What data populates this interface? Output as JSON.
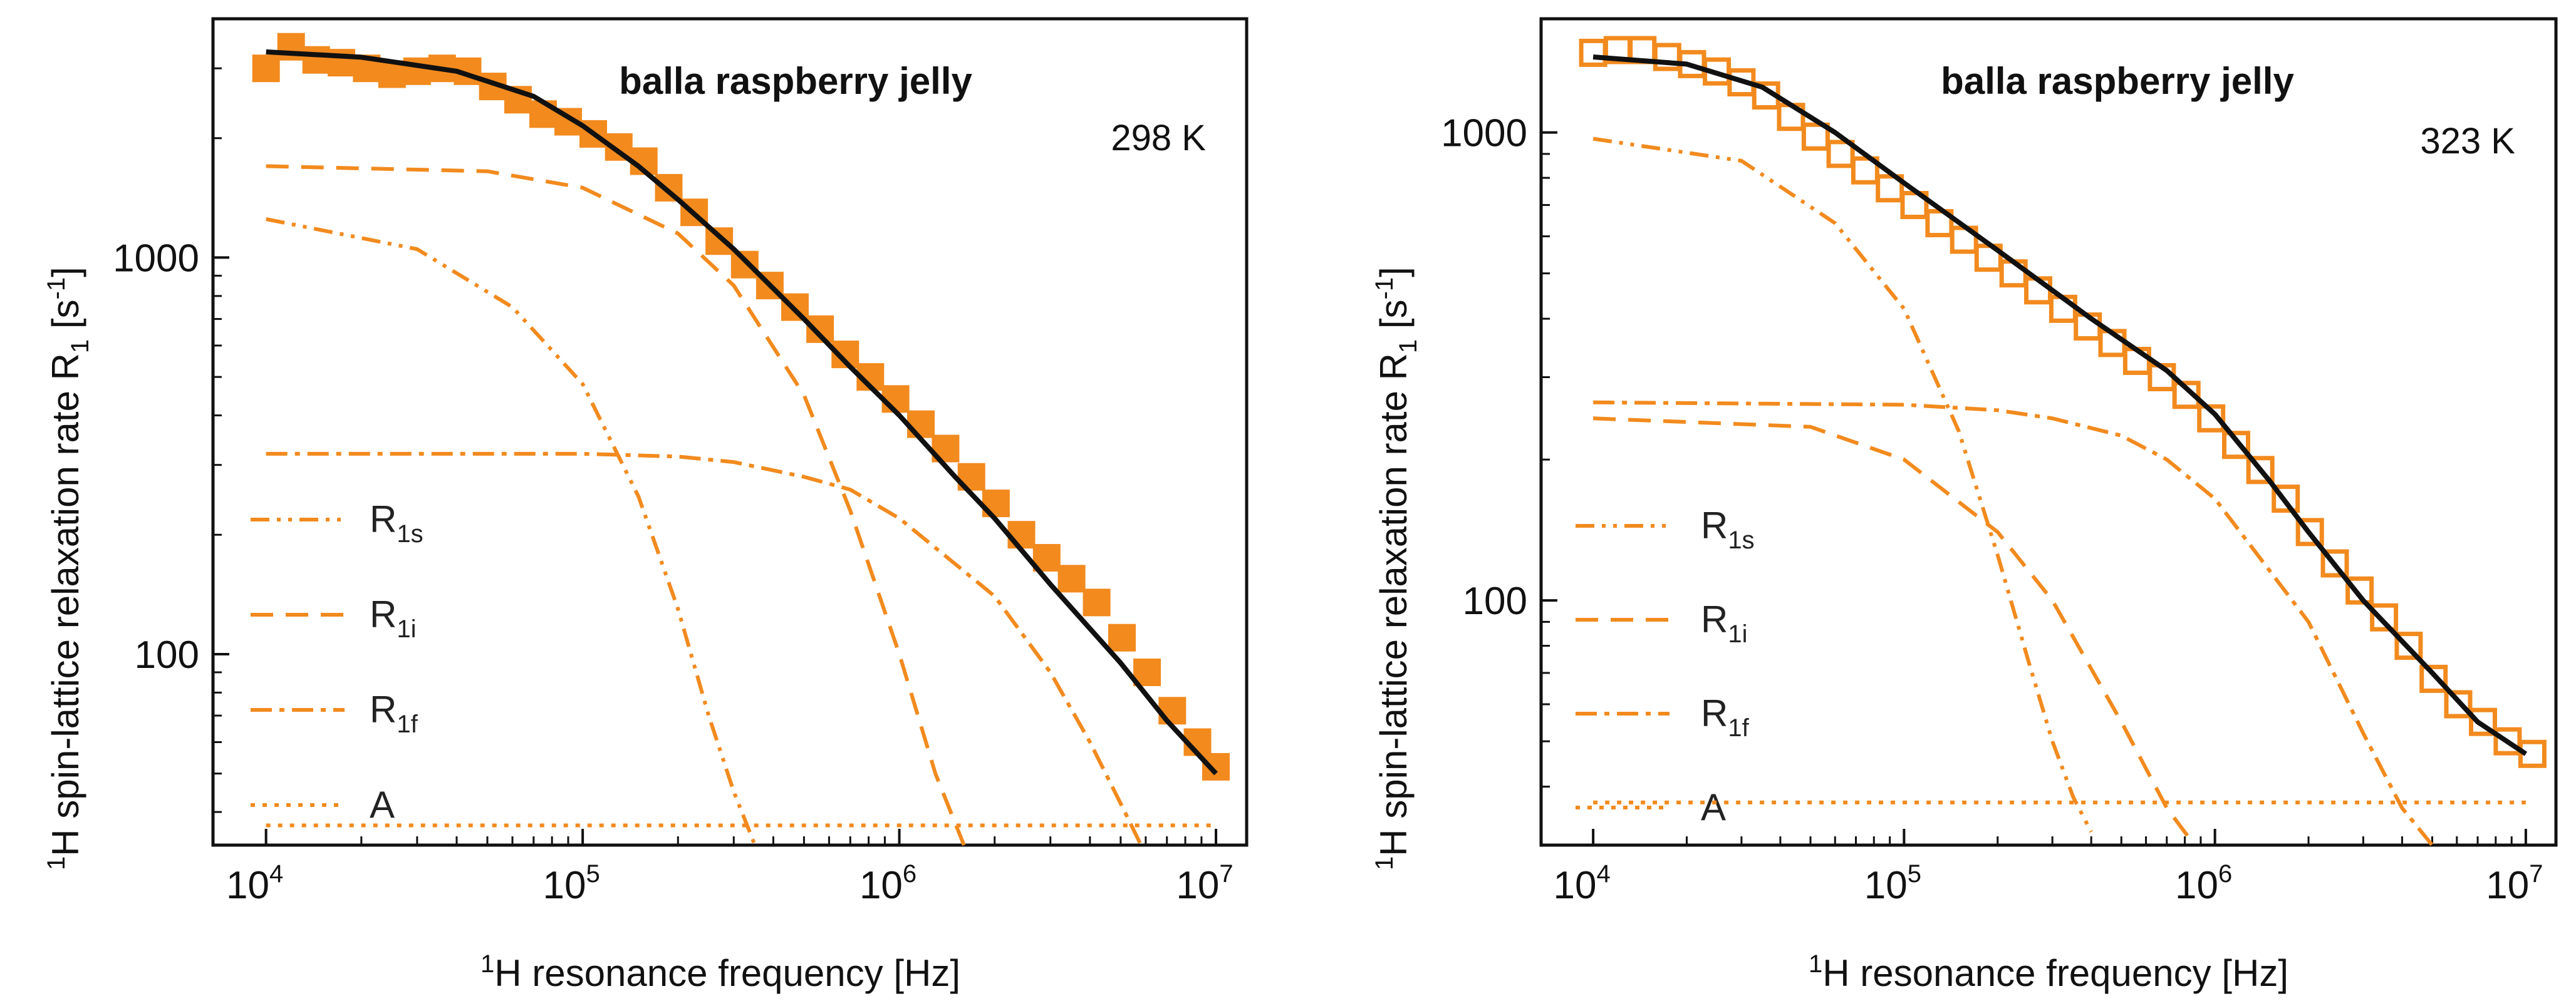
{
  "colors": {
    "orange": "#F28A1E",
    "black": "#111111",
    "frame": "#111111"
  },
  "common": {
    "xlabel": "resonance frequency [Hz]",
    "xlabel_prefix": "1",
    "xlabel_nucleus": "H",
    "ylabel": "spin-lattice relaxation rate R",
    "ylabel_prefix": "1",
    "ylabel_nucleus": "H",
    "ylabel_sub": "1",
    "ylabel_unit_open": "[s",
    "ylabel_unit_sup": "-1",
    "ylabel_unit_close": "]",
    "x_tick_base": "10",
    "x_tick_exps": [
      "4",
      "5",
      "6",
      "7"
    ]
  },
  "chart_data": [
    {
      "type": "scatter",
      "title": "balla raspberry jelly",
      "temperature": "298 K",
      "marker": "filled-square",
      "xscale": "log",
      "yscale": "log",
      "xlim": [
        6800,
        12500000
      ],
      "ylim": [
        33,
        4000
      ],
      "yticks": [
        100,
        1000
      ],
      "ytick_labels": [
        "100",
        "1000"
      ],
      "legend": [
        {
          "label": "R",
          "sub": "1s",
          "style": "dash-dot-dot"
        },
        {
          "label": "R",
          "sub": "1i",
          "style": "dash"
        },
        {
          "label": "R",
          "sub": "1f",
          "style": "dash-dot"
        },
        {
          "label": "A",
          "sub": "",
          "style": "dot"
        }
      ],
      "points": {
        "x": [
          10000,
          12000,
          14400,
          17300,
          20800,
          25000,
          30000,
          36000,
          43300,
          52000,
          62500,
          75000,
          90000,
          108000,
          130000,
          156000,
          187000,
          225000,
          270000,
          325000,
          390000,
          468000,
          562000,
          675000,
          810000,
          973000,
          1170000,
          1400000,
          1690000,
          2020000,
          2430000,
          2920000,
          3500000,
          4200000,
          5050000,
          6060000,
          7280000,
          8740000,
          10000000
        ],
        "y": [
          3000,
          3400,
          3150,
          3100,
          3000,
          2900,
          2950,
          3000,
          2950,
          2700,
          2500,
          2300,
          2200,
          2050,
          1900,
          1750,
          1500,
          1300,
          1100,
          960,
          850,
          750,
          660,
          570,
          500,
          440,
          380,
          330,
          280,
          240,
          200,
          175,
          155,
          135,
          110,
          90,
          72,
          60,
          52
        ]
      },
      "fit": {
        "x": [
          10000,
          20000,
          40000,
          70000,
          100000,
          150000,
          200000,
          300000,
          500000,
          700000,
          1000000,
          1500000,
          2000000,
          3000000,
          5000000,
          7000000,
          10000000
        ],
        "y": [
          3300,
          3200,
          2950,
          2550,
          2150,
          1700,
          1400,
          1050,
          700,
          530,
          400,
          280,
          220,
          150,
          95,
          68,
          50
        ]
      },
      "components": {
        "R1s": {
          "x": [
            10000,
            30000,
            60000,
            100000,
            150000,
            200000,
            250000,
            300000,
            350000
          ],
          "y": [
            1250,
            1050,
            750,
            480,
            250,
            130,
            70,
            45,
            33
          ]
        },
        "R1i": {
          "x": [
            10000,
            50000,
            100000,
            200000,
            300000,
            500000,
            700000,
            1000000,
            1300000,
            1600000
          ],
          "y": [
            1700,
            1650,
            1500,
            1150,
            850,
            450,
            230,
            100,
            50,
            33
          ]
        },
        "R1f": {
          "x": [
            10000,
            100000,
            200000,
            300000,
            500000,
            700000,
            1000000,
            2000000,
            3000000,
            4000000,
            5000000,
            5800000
          ],
          "y": [
            320,
            320,
            315,
            305,
            280,
            260,
            220,
            140,
            90,
            60,
            42,
            33
          ]
        },
        "A": {
          "x": [
            10000,
            10000000
          ],
          "y": [
            37,
            37
          ]
        }
      }
    },
    {
      "type": "scatter",
      "title": "balla raspberry jelly",
      "temperature": "323 K",
      "marker": "open-square",
      "xscale": "log",
      "yscale": "log",
      "xlim": [
        6800,
        12500000
      ],
      "ylim": [
        30,
        1750
      ],
      "yticks": [
        100,
        1000
      ],
      "ytick_labels": [
        "100",
        "1000"
      ],
      "legend": [
        {
          "label": "R",
          "sub": "1s",
          "style": "dash-dot-dot"
        },
        {
          "label": "R",
          "sub": "1i",
          "style": "dash"
        },
        {
          "label": "R",
          "sub": "1f",
          "style": "dash-dot"
        },
        {
          "label": "A",
          "sub": "",
          "style": "dot"
        }
      ],
      "points": {
        "x": [
          10000,
          12000,
          14400,
          17300,
          20800,
          25000,
          30000,
          36000,
          43300,
          52000,
          62500,
          75000,
          90000,
          108000,
          130000,
          156000,
          187000,
          225000,
          270000,
          325000,
          390000,
          468000,
          562000,
          675000,
          810000,
          973000,
          1170000,
          1400000,
          1690000,
          2020000,
          2430000,
          2920000,
          3500000,
          4200000,
          5050000,
          6060000,
          7280000,
          8740000,
          10500000
        ],
        "y": [
          1480,
          1500,
          1500,
          1450,
          1400,
          1350,
          1280,
          1200,
          1080,
          980,
          900,
          830,
          760,
          700,
          640,
          590,
          540,
          500,
          460,
          420,
          385,
          355,
          325,
          300,
          275,
          245,
          215,
          190,
          165,
          140,
          120,
          105,
          92,
          80,
          68,
          60,
          55,
          50,
          47
        ]
      },
      "fit": {
        "x": [
          10000,
          20000,
          35000,
          60000,
          100000,
          200000,
          400000,
          700000,
          1000000,
          1500000,
          2000000,
          3000000,
          5000000,
          7000000,
          10000000
        ],
        "y": [
          1450,
          1400,
          1250,
          1000,
          780,
          560,
          400,
          310,
          250,
          180,
          140,
          100,
          70,
          55,
          47
        ]
      },
      "components": {
        "R1s": {
          "x": [
            10000,
            30000,
            60000,
            100000,
            150000,
            200000,
            250000,
            300000,
            350000,
            400000
          ],
          "y": [
            970,
            870,
            640,
            420,
            230,
            125,
            75,
            50,
            38,
            32
          ]
        },
        "R1i": {
          "x": [
            10000,
            50000,
            100000,
            200000,
            300000,
            500000,
            700000,
            860000
          ],
          "y": [
            245,
            235,
            200,
            140,
            100,
            55,
            36,
            30
          ]
        },
        "R1f": {
          "x": [
            10000,
            100000,
            200000,
            300000,
            500000,
            700000,
            1000000,
            2000000,
            3000000,
            4000000,
            5000000
          ],
          "y": [
            265,
            262,
            255,
            245,
            225,
            200,
            165,
            90,
            52,
            36,
            30
          ]
        },
        "A": {
          "x": [
            10000,
            10000000
          ],
          "y": [
            37,
            37
          ]
        }
      }
    }
  ]
}
